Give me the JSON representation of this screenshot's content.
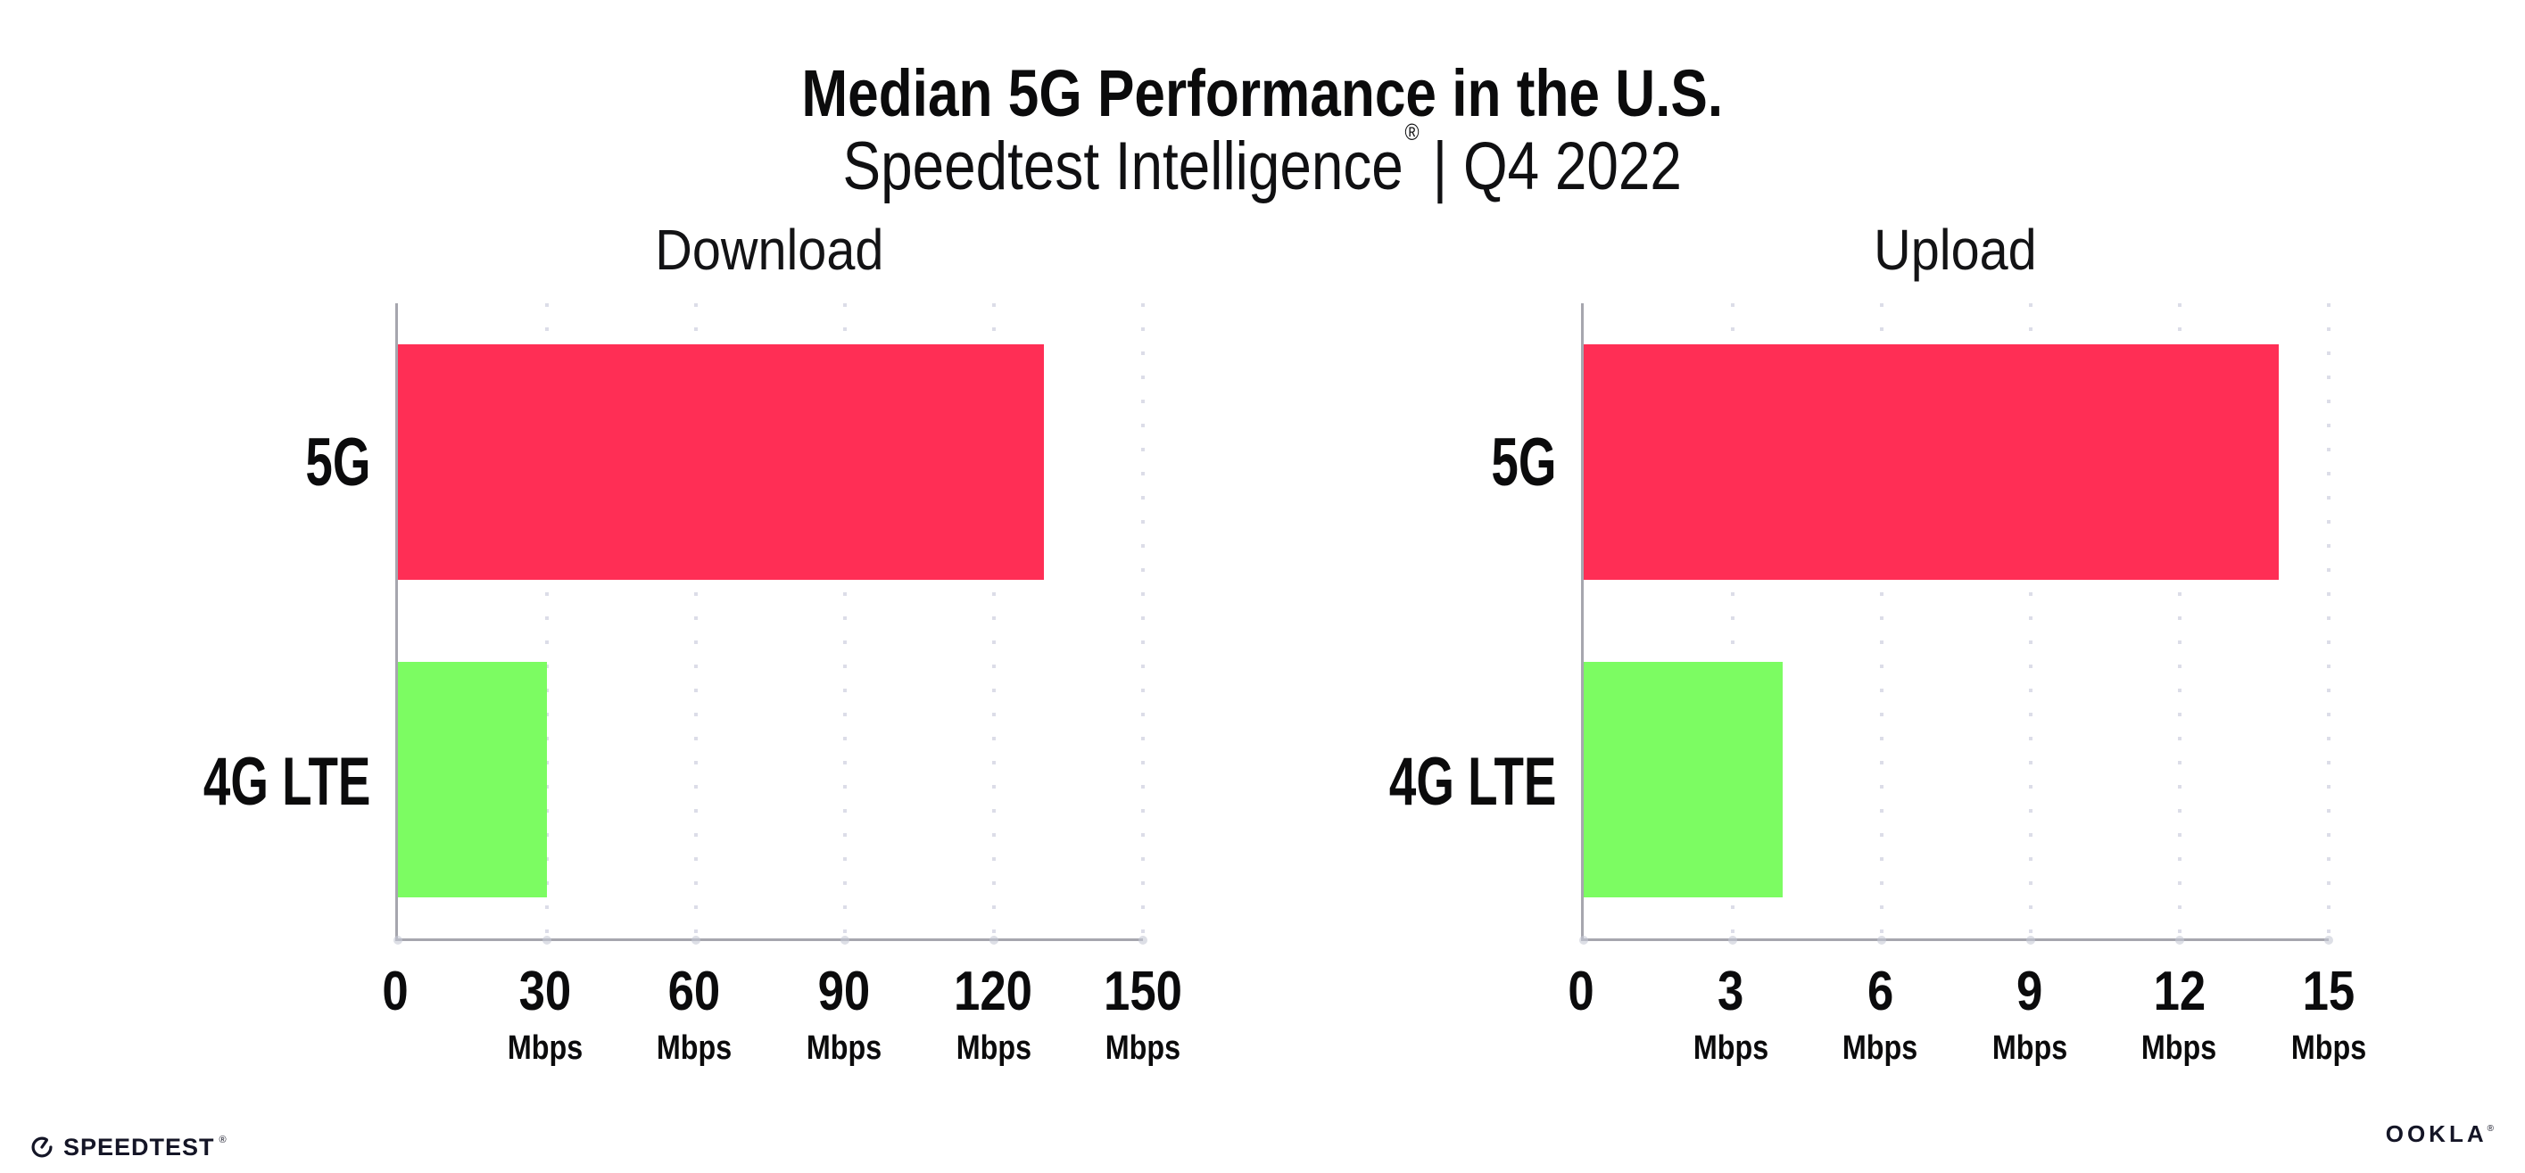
{
  "header": {
    "title": "Median 5G Performance in the U.S.",
    "subtitle_brand": "Speedtest Intelligence",
    "subtitle_reg": "®",
    "subtitle_period": "| Q4 2022"
  },
  "chart_data": [
    {
      "type": "bar",
      "orientation": "horizontal",
      "title": "Download",
      "categories": [
        "5G",
        "4G LTE"
      ],
      "values": [
        130,
        30
      ],
      "unit": "Mbps",
      "xlim": [
        0,
        150
      ],
      "xticks": [
        0,
        30,
        60,
        90,
        120,
        150
      ],
      "bar_colors": [
        "#FF2E55",
        "#7CFC62"
      ],
      "grid": "vertical-dotted-at-ticks",
      "legend_position": "none"
    },
    {
      "type": "bar",
      "orientation": "horizontal",
      "title": "Upload",
      "categories": [
        "5G",
        "4G LTE"
      ],
      "values": [
        14,
        4
      ],
      "unit": "Mbps",
      "xlim": [
        0,
        15
      ],
      "xticks": [
        0,
        3,
        6,
        9,
        12,
        15
      ],
      "bar_colors": [
        "#FF2E55",
        "#7CFC62"
      ],
      "grid": "vertical-dotted-at-ticks",
      "legend_position": "none"
    }
  ],
  "footer": {
    "speedtest_label": "SPEEDTEST",
    "speedtest_reg": "®",
    "ookla_label": "OOKLA",
    "ookla_reg": "®"
  },
  "colors": {
    "bar_5g": "#FF2E55",
    "bar_4g_lte": "#7CFC62",
    "axis": "#A6A6AE",
    "gridline": "#DCDDE8",
    "text": "#0B0B0C",
    "logo": "#141526",
    "background": "#FFFFFF"
  }
}
